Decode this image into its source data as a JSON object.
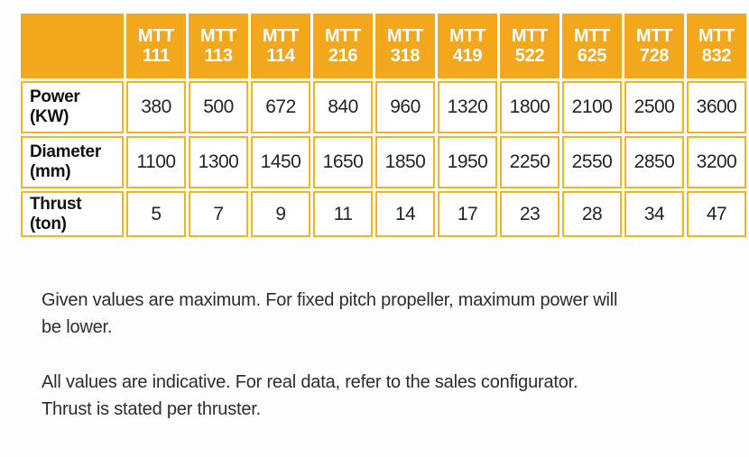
{
  "colors": {
    "header_bg": "#f2a71c",
    "cell_border": "#f6b320",
    "header_text": "#ffffff",
    "body_text": "#242424",
    "note_text": "#2d2d2d",
    "page_bg": "#fdfdfd"
  },
  "table": {
    "corner_label": "",
    "column_headers": [
      "MTT\n111",
      "MTT\n113",
      "MTT\n114",
      "MTT\n216",
      "MTT\n318",
      "MTT\n419",
      "MTT\n522",
      "MTT\n625",
      "MTT\n728",
      "MTT\n832"
    ],
    "rows": [
      {
        "key": "power",
        "label": "Power\n(KW)",
        "values": [
          "380",
          "500",
          "672",
          "840",
          "960",
          "1320",
          "1800",
          "2100",
          "2500",
          "3600"
        ]
      },
      {
        "key": "diameter",
        "label": "Diameter\n(mm)",
        "values": [
          "1100",
          "1300",
          "1450",
          "1650",
          "1850",
          "1950",
          "2250",
          "2550",
          "2850",
          "3200"
        ]
      },
      {
        "key": "thrust",
        "label": "Thrust\n(ton)",
        "values": [
          "5",
          "7",
          "9",
          "11",
          "14",
          "17",
          "23",
          "28",
          "34",
          "47"
        ]
      }
    ]
  },
  "notes": {
    "note1": "Given values are maximum. For fixed pitch propeller, maximum power will\nbe lower.",
    "note2": "All values are indicative. For real data, refer to the sales configurator.\nThrust is stated per thruster."
  }
}
